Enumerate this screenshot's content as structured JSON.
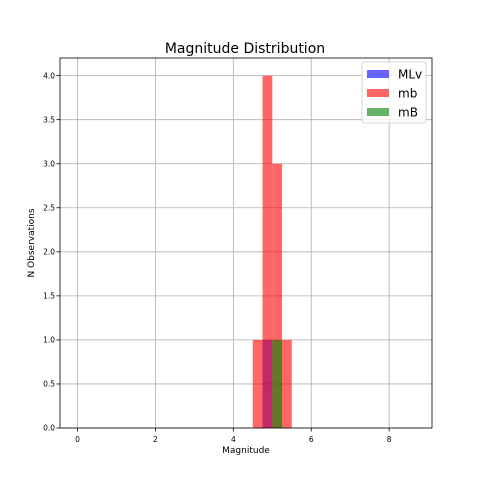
{
  "chart_data": {
    "type": "bar",
    "title": "Magnitude Distribution",
    "xlabel": "Magnitude",
    "ylabel": "N Observations",
    "xlim": [
      -0.45,
      9.1
    ],
    "ylim": [
      0,
      4.2
    ],
    "xticks": [
      0,
      2,
      4,
      6,
      8
    ],
    "yticks": [
      0.0,
      0.5,
      1.0,
      1.5,
      2.0,
      2.5,
      3.0,
      3.5,
      4.0
    ],
    "grid": true,
    "legend_position": "top-right",
    "series": [
      {
        "name": "MLv",
        "color": "#0000ff",
        "bins": [
          {
            "x0": 4.75,
            "x1": 5.0,
            "count": 1
          }
        ]
      },
      {
        "name": "mb",
        "color": "#ff0000",
        "bins": [
          {
            "x0": 4.5,
            "x1": 4.75,
            "count": 1
          },
          {
            "x0": 4.75,
            "x1": 5.0,
            "count": 4
          },
          {
            "x0": 5.0,
            "x1": 5.25,
            "count": 3
          },
          {
            "x0": 5.25,
            "x1": 5.5,
            "count": 1
          }
        ]
      },
      {
        "name": "mB",
        "color": "#008000",
        "bins": [
          {
            "x0": 5.0,
            "x1": 5.25,
            "count": 1
          }
        ]
      }
    ]
  }
}
